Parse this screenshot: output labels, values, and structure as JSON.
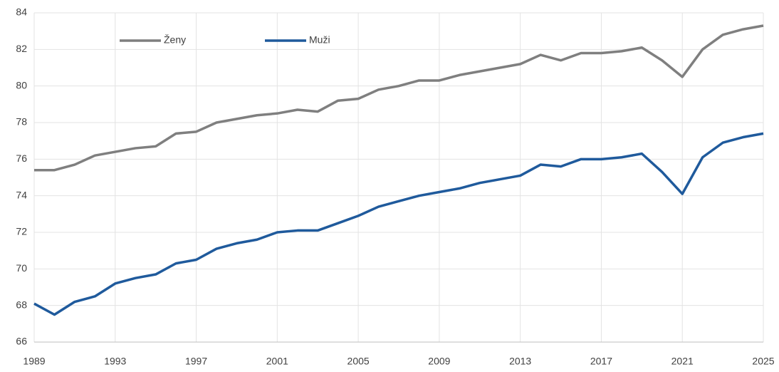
{
  "chart_data": {
    "type": "line",
    "x": [
      1989,
      1990,
      1991,
      1992,
      1993,
      1994,
      1995,
      1996,
      1997,
      1998,
      1999,
      2000,
      2001,
      2002,
      2003,
      2004,
      2005,
      2006,
      2007,
      2008,
      2009,
      2010,
      2011,
      2012,
      2013,
      2014,
      2015,
      2016,
      2017,
      2018,
      2019,
      2020,
      2021,
      2022,
      2023,
      2024,
      2025
    ],
    "series": [
      {
        "name": "Ženy",
        "color": "#7f7f7f",
        "values": [
          75.4,
          75.4,
          75.7,
          76.2,
          76.4,
          76.6,
          76.7,
          77.4,
          77.5,
          78.0,
          78.2,
          78.4,
          78.5,
          78.7,
          78.6,
          79.2,
          79.3,
          79.8,
          80.0,
          80.3,
          80.3,
          80.6,
          80.8,
          81.0,
          81.2,
          81.7,
          81.4,
          81.8,
          81.8,
          81.9,
          82.1,
          81.4,
          80.5,
          82.0,
          82.8,
          83.1,
          83.3
        ]
      },
      {
        "name": "Muži",
        "color": "#1f5a9c",
        "values": [
          68.1,
          67.5,
          68.2,
          68.5,
          69.2,
          69.5,
          69.7,
          70.3,
          70.5,
          71.1,
          71.4,
          71.6,
          72.0,
          72.1,
          72.1,
          72.5,
          72.9,
          73.4,
          73.7,
          74.0,
          74.2,
          74.4,
          74.7,
          74.9,
          75.1,
          75.7,
          75.6,
          76.0,
          76.0,
          76.1,
          76.3,
          75.3,
          74.1,
          76.1,
          76.9,
          77.2,
          77.4
        ]
      }
    ],
    "xlim": [
      1989,
      2025
    ],
    "xticks": [
      1989,
      1993,
      1997,
      2001,
      2005,
      2009,
      2013,
      2017,
      2021,
      2025
    ],
    "ylim": [
      66,
      84
    ],
    "yticks": [
      66,
      68,
      70,
      72,
      74,
      76,
      78,
      80,
      82,
      84
    ],
    "grid": true,
    "legend": "top"
  }
}
